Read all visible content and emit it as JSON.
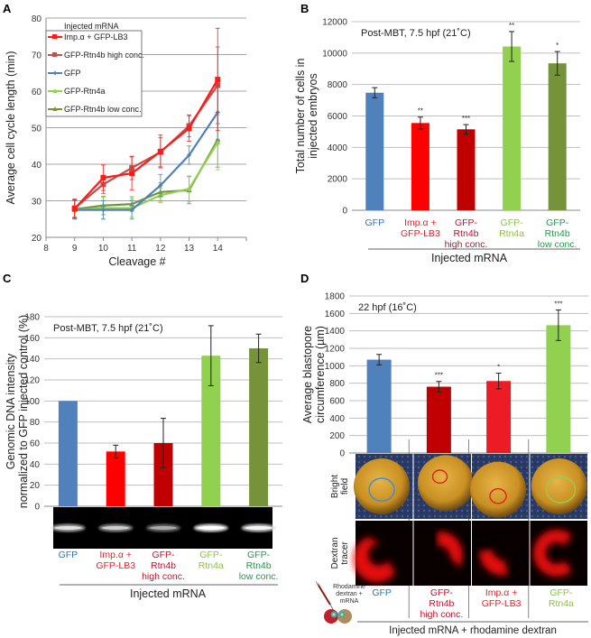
{
  "figure": {
    "panel_labels": [
      "A",
      "B",
      "C",
      "D"
    ]
  },
  "colors": {
    "GFP": "#4f81bd",
    "Imp.α + GFP-LB3": "#ff1a1a",
    "GFP-Rtn4b high conc.": "#c00000",
    "GFP-Rtn4a": "#92d050",
    "GFP-Rtn4b low conc.": "#76933c",
    "label_GFP": "#2e75b6",
    "label_red": "#e8202a",
    "label_rtn4a": "#8cc63f",
    "label_low": "#1e9e4a"
  },
  "chart_data": [
    {
      "panel": "A",
      "type": "line",
      "title": "",
      "xlabel": "Cleavage #",
      "ylabel": "Average cell cycle length (min)",
      "x": [
        9,
        10,
        11,
        12,
        13,
        14
      ],
      "xlim": [
        8,
        15
      ],
      "xticks": [
        8,
        9,
        10,
        11,
        12,
        13,
        14
      ],
      "ylim": [
        20,
        80
      ],
      "yticks": [
        20,
        30,
        40,
        50,
        60,
        70,
        80
      ],
      "grid": true,
      "legend_title": "Injected mRNA",
      "legend_position": "top-left",
      "series": [
        {
          "name": "Imp.α + GFP-LB3",
          "marker": "square",
          "color": "#ff1a1a",
          "values": [
            27.8,
            36.3,
            37.5,
            43.5,
            49.8,
            63.2
          ],
          "errors": [
            2.5,
            3.5,
            4.5,
            4.5,
            3.5,
            14
          ]
        },
        {
          "name": "GFP-Rtn4b high conc.",
          "marker": "square",
          "color": "#c0504d",
          "values": [
            28,
            34.5,
            39,
            43.3,
            50.5,
            61.6
          ],
          "errors": [
            2.5,
            2.5,
            3.2,
            4.0,
            3.0,
            10.5
          ]
        },
        {
          "name": "GFP",
          "marker": "diamond",
          "color": "#4f81bd",
          "values": [
            27.5,
            27.5,
            27.5,
            34.2,
            42.5,
            54.2
          ],
          "errors": [
            2.5,
            2.5,
            2.5,
            3.0,
            2.5,
            7.5
          ]
        },
        {
          "name": "GFP-Rtn4a",
          "marker": "triangle",
          "color": "#92d050",
          "values": [
            27.5,
            28,
            28,
            31.5,
            33.3,
            46
          ],
          "errors": [
            2.5,
            3.0,
            2.5,
            2.0,
            3.5,
            7.5
          ]
        },
        {
          "name": "GFP-Rtn4b low conc.",
          "marker": "triangle",
          "color": "#76933c",
          "values": [
            27.7,
            28.7,
            29.1,
            32.4,
            32.9,
            46.7
          ],
          "errors": [
            2.5,
            2.5,
            2.0,
            2.5,
            3.7,
            7.5
          ]
        }
      ]
    },
    {
      "panel": "B",
      "type": "bar",
      "annotation": "Post-MBT, 7.5 hpf (21˚C)",
      "xlabel": "Injected mRNA",
      "ylabel": "Total number of cells in injected embryos",
      "ylim": [
        0,
        12000
      ],
      "yticks": [
        0,
        2000,
        4000,
        6000,
        8000,
        10000,
        12000
      ],
      "grid": true,
      "categories": [
        {
          "lines": [
            "GFP"
          ],
          "color": "#2e75b6"
        },
        {
          "lines": [
            "Imp.α +",
            "GFP-LB3"
          ],
          "color": "#e8202a"
        },
        {
          "lines": [
            "GFP-",
            "Rtn4b",
            "high conc."
          ],
          "color": "#c8102e"
        },
        {
          "lines": [
            "GFP-",
            "Rtn4a"
          ],
          "color": "#8cc63f"
        },
        {
          "lines": [
            "GFP-",
            "Rtn4b",
            "low conc."
          ],
          "color": "#1e9e4a"
        }
      ],
      "values": [
        7480,
        5550,
        5150,
        10420,
        9350
      ],
      "errors": [
        320,
        380,
        300,
        950,
        750
      ],
      "significance": [
        "",
        "**",
        "***",
        "**",
        "*"
      ],
      "bar_colors": [
        "#4f81bd",
        "#ff0000",
        "#c00000",
        "#92d050",
        "#76933c"
      ]
    },
    {
      "panel": "C",
      "type": "bar",
      "annotation": "Post-MBT, 7.5 hpf (21˚C)",
      "xlabel": "Injected mRNA",
      "ylabel": "Genomic DNA intensity normalized to GFP injected control (%)",
      "ylim": [
        0,
        180
      ],
      "yticks": [
        0,
        20,
        40,
        60,
        80,
        100,
        120,
        140,
        160,
        180
      ],
      "grid": true,
      "categories": [
        {
          "lines": [
            "GFP"
          ],
          "color": "#2e75b6"
        },
        {
          "lines": [
            "Imp.α +",
            "GFP-LB3"
          ],
          "color": "#e8202a"
        },
        {
          "lines": [
            "GFP-",
            "Rtn4b",
            "high conc."
          ],
          "color": "#c8102e"
        },
        {
          "lines": [
            "GFP-",
            "Rtn4a"
          ],
          "color": "#8cc63f"
        },
        {
          "lines": [
            "GFP-",
            "Rtn4b",
            "low conc."
          ],
          "color": "#1e9e4a"
        }
      ],
      "values": [
        100,
        52,
        60,
        143,
        150
      ],
      "errors": [
        0,
        6,
        23.5,
        28.5,
        13.5
      ],
      "bar_colors": [
        "#4f81bd",
        "#ff0000",
        "#c00000",
        "#92d050",
        "#76933c"
      ],
      "gel_band_intensity": [
        0.7,
        0.6,
        0.45,
        0.95,
        0.85
      ]
    },
    {
      "panel": "D",
      "type": "bar",
      "annotation": "22 hpf (16˚C)",
      "xlabel": "Injected mRNA + rhodamine dextran",
      "ylabel": "Average blastopore circumference (µm)",
      "ylim": [
        0,
        1800
      ],
      "yticks": [
        0,
        200,
        400,
        600,
        800,
        1000,
        1200,
        1400,
        1600,
        1800
      ],
      "grid": true,
      "categories": [
        {
          "lines": [
            "GFP"
          ],
          "color": "#2e75b6"
        },
        {
          "lines": [
            "GFP-",
            "Rtn4b",
            "high conc."
          ],
          "color": "#c8102e"
        },
        {
          "lines": [
            "Imp.α +",
            "GFP-LB3"
          ],
          "color": "#e8202a"
        },
        {
          "lines": [
            "GFP-",
            "Rtn4a"
          ],
          "color": "#8cc63f"
        }
      ],
      "values": [
        1070,
        760,
        825,
        1465
      ],
      "errors": [
        60,
        60,
        90,
        175
      ],
      "significance": [
        "",
        "***",
        "*",
        "***"
      ],
      "bar_colors": [
        "#4f81bd",
        "#c00000",
        "#ed1c24",
        "#92d050"
      ],
      "image_rows": [
        "Bright field",
        "Dextran tracer"
      ],
      "outline_colors": [
        "#3d8fd6",
        "#e02020",
        "#e02020",
        "#92d050"
      ],
      "schematic_label": [
        "Rhodamine",
        "dextran +",
        "mRNA"
      ]
    }
  ]
}
